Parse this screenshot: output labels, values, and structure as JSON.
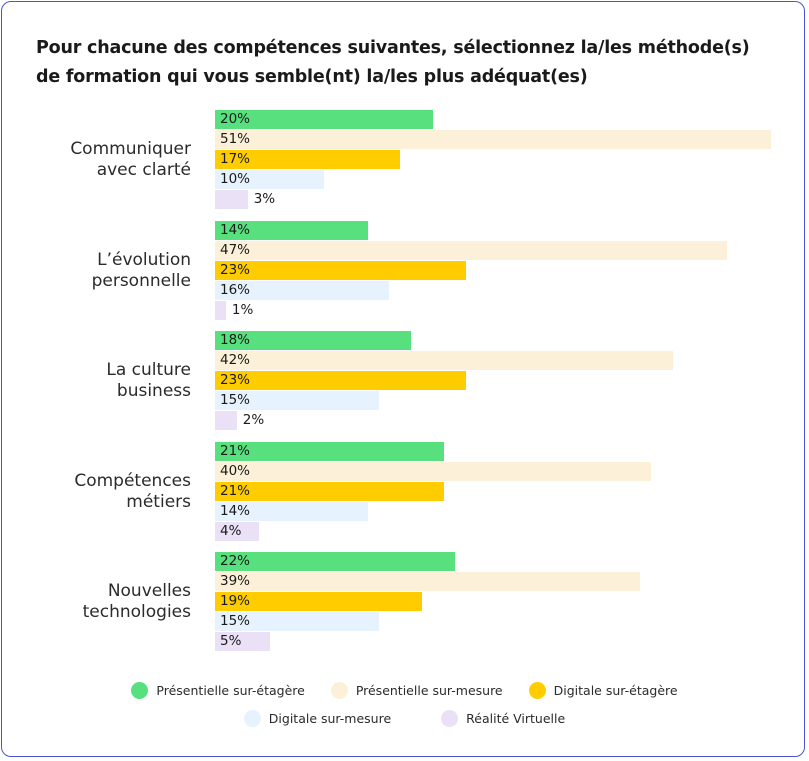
{
  "chart_data": {
    "type": "bar",
    "orientation": "horizontal",
    "title": "Pour chacune des compétences suivantes, sélectionnez la/les méthode(s) de formation qui vous semble(nt) la/les plus adéquat(es)",
    "categories": [
      [
        "Communiquer",
        "avec clarté"
      ],
      [
        "L’évolution",
        "personnelle"
      ],
      [
        "La culture",
        "business"
      ],
      [
        "Compétences",
        "métiers"
      ],
      [
        "Nouvelles",
        "technologies"
      ]
    ],
    "series": [
      {
        "name": "Présentielle sur-étagère",
        "color": "#58e07f",
        "values": [
          20,
          14,
          18,
          21,
          22
        ]
      },
      {
        "name": "Présentielle sur-mesure",
        "color": "#fcf0d8",
        "values": [
          51,
          47,
          42,
          40,
          39
        ]
      },
      {
        "name": "Digitale sur-étagère",
        "color": "#ffcc00",
        "values": [
          17,
          23,
          23,
          21,
          19
        ]
      },
      {
        "name": "Digitale sur-mesure",
        "color": "#e6f2fd",
        "values": [
          10,
          16,
          15,
          14,
          15
        ]
      },
      {
        "name": "Réalité Virtuelle",
        "color": "#ebe1f7",
        "values": [
          3,
          1,
          2,
          4,
          5
        ]
      }
    ],
    "value_suffix": "%",
    "legend_position": "bottom",
    "grid": false
  }
}
